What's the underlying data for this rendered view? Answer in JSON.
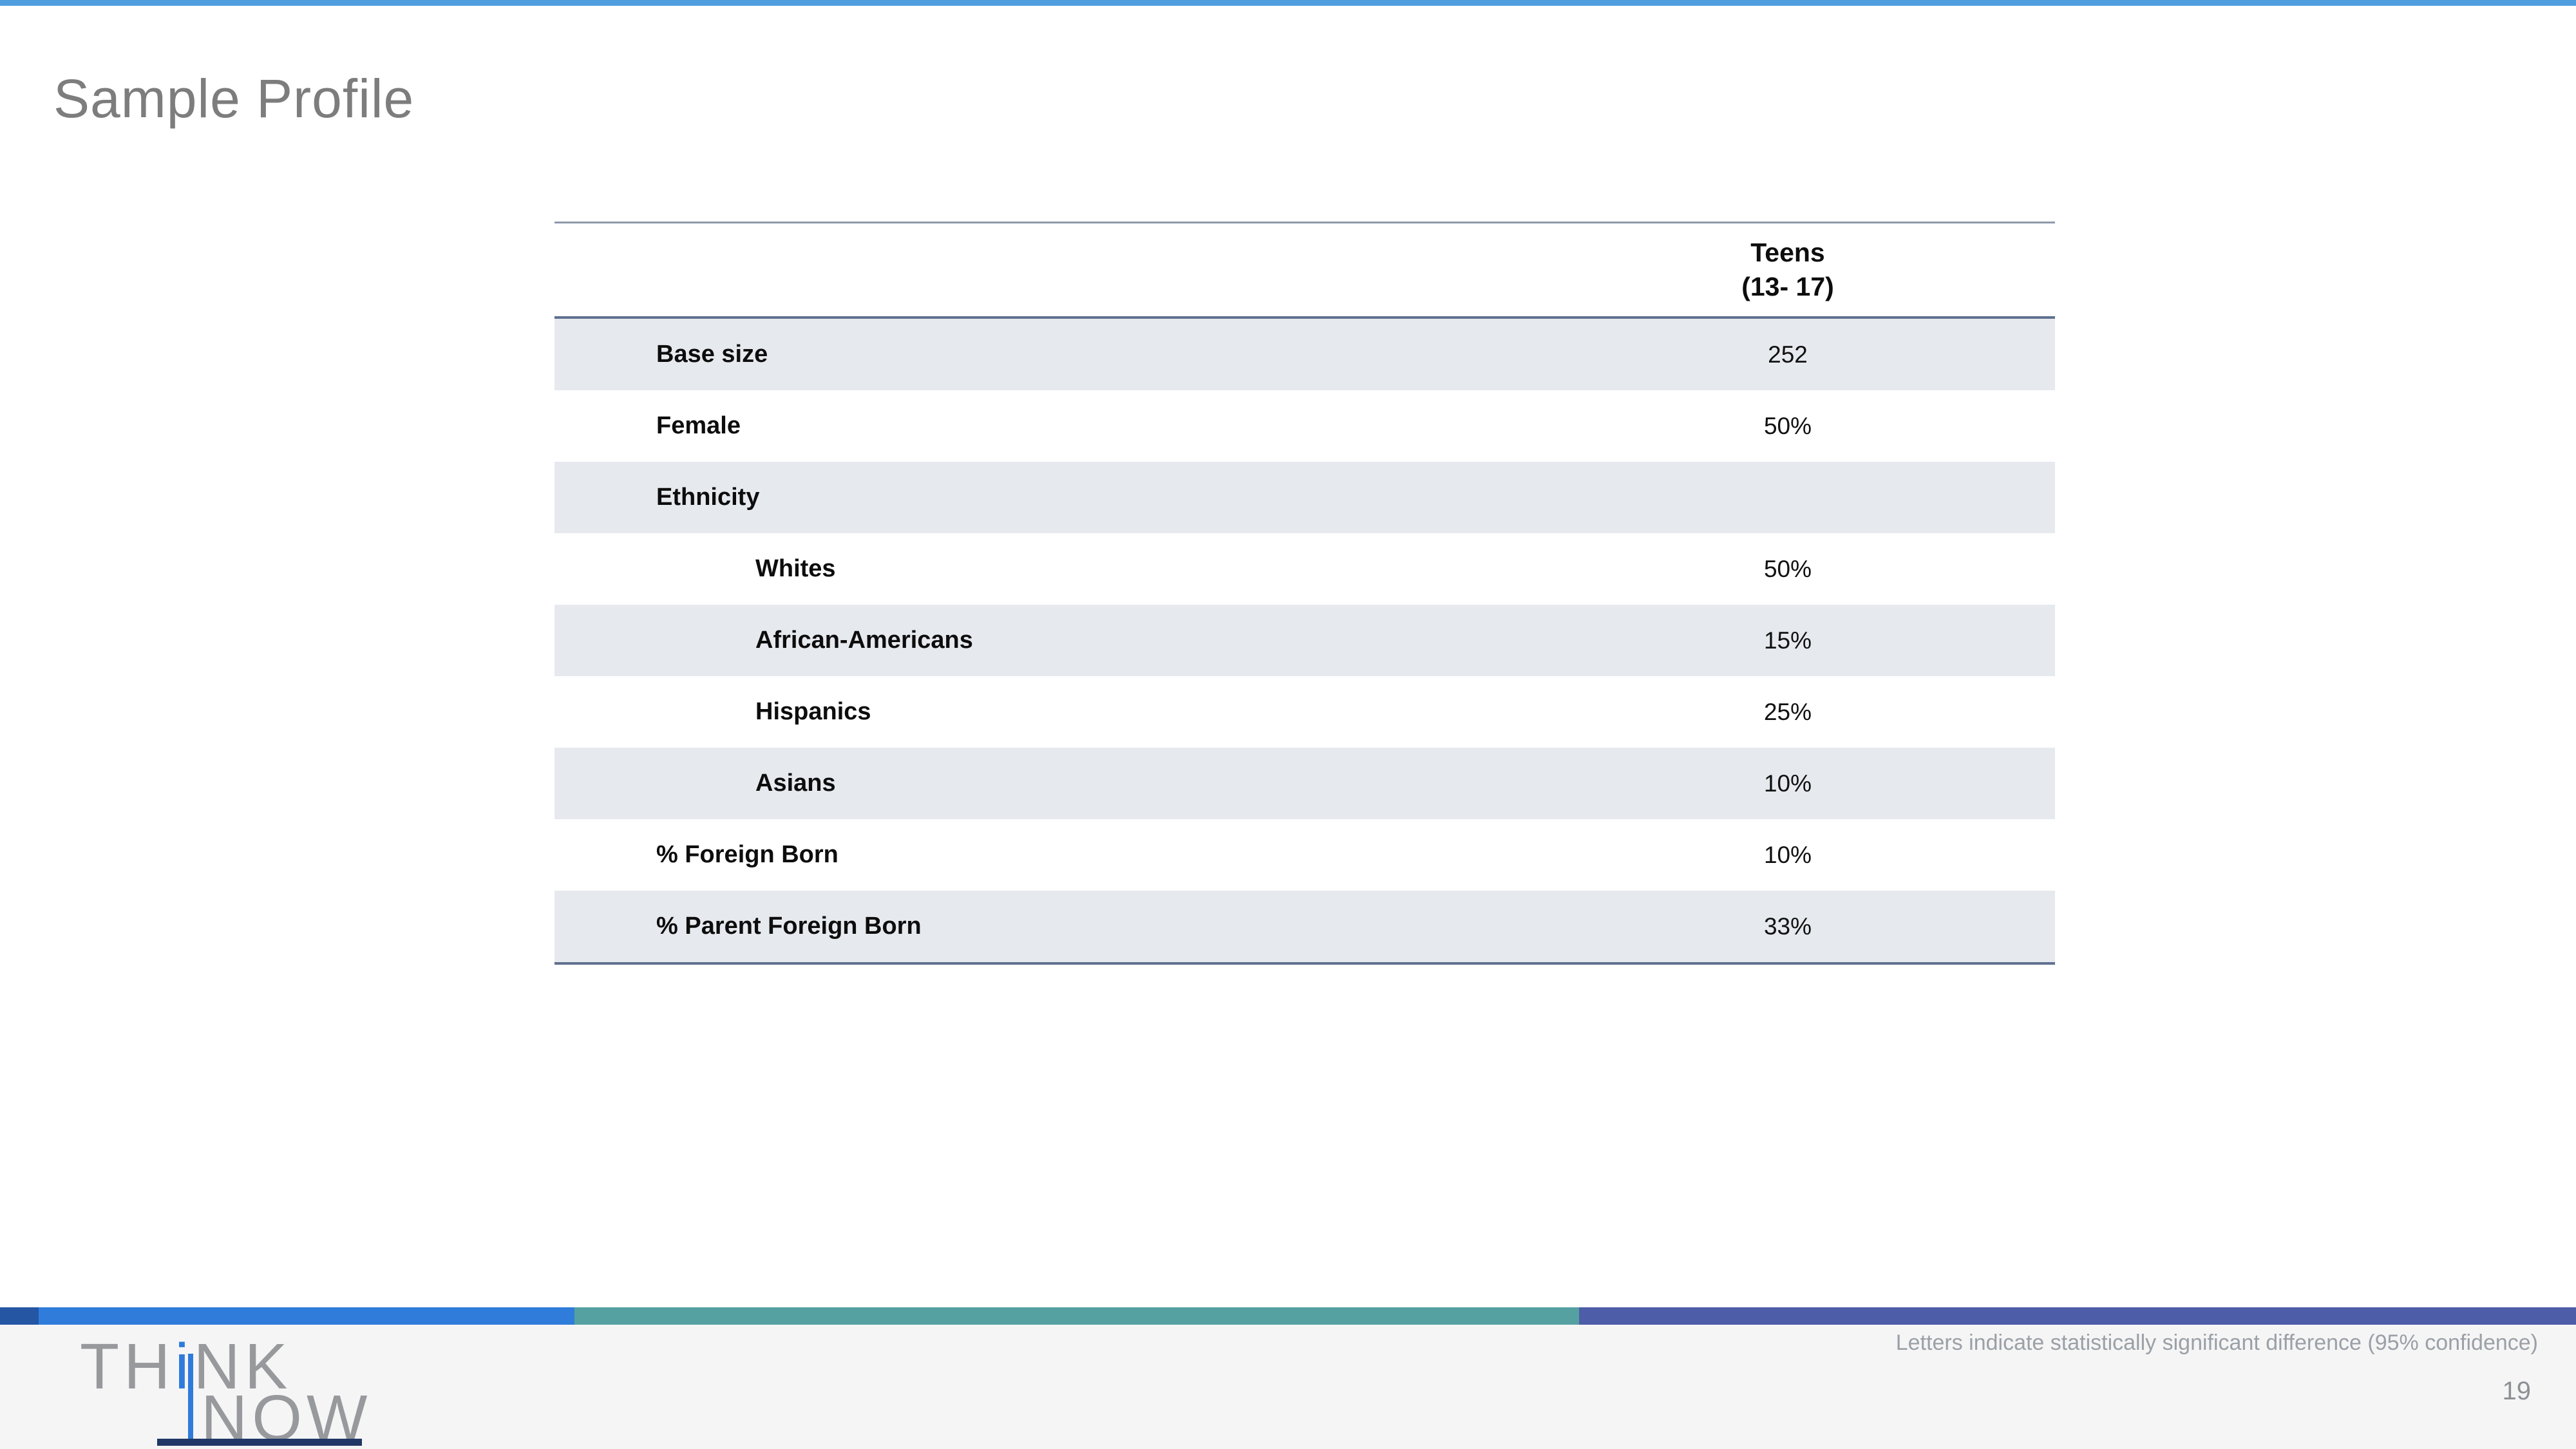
{
  "slide": {
    "title": "Sample Profile",
    "footer_note": "Letters indicate statistically significant difference (95% confidence)",
    "page_number": "19"
  },
  "logo": {
    "line1_pre": "TH",
    "line1_i": "i",
    "line1_post": "NK",
    "line2": "NOW"
  },
  "table": {
    "header_line1": "Teens",
    "header_line2": "(13- 17)",
    "rows": [
      {
        "label": "Base size",
        "value": "252",
        "indent": 1,
        "shaded": true
      },
      {
        "label": "Female",
        "value": "50%",
        "indent": 1,
        "shaded": false
      },
      {
        "label": "Ethnicity",
        "value": "",
        "indent": 1,
        "shaded": true
      },
      {
        "label": "Whites",
        "value": "50%",
        "indent": 2,
        "shaded": false
      },
      {
        "label": "African-Americans",
        "value": "15%",
        "indent": 2,
        "shaded": true
      },
      {
        "label": "Hispanics",
        "value": "25%",
        "indent": 2,
        "shaded": false
      },
      {
        "label": "Asians",
        "value": "10%",
        "indent": 2,
        "shaded": true
      },
      {
        "label": "% Foreign Born",
        "value": "10%",
        "indent": 1,
        "shaded": false
      },
      {
        "label": "% Parent Foreign Born",
        "value": "33%",
        "indent": 1,
        "shaded": true
      }
    ]
  },
  "colors": {
    "top_accent": "#4f9fe0",
    "shaded_row": "#e6e9ee",
    "table_rule": "#61708f",
    "logo_blue": "#2e7bdb",
    "logo_navy": "#203865"
  },
  "footer": {
    "stripe_segments": [
      {
        "color": "#2456a3",
        "width_pct": 1.5
      },
      {
        "color": "#2f7cdb",
        "width_pct": 20.8
      },
      {
        "color": "#55a1a1",
        "width_pct": 39.0
      },
      {
        "color": "#4d5da8",
        "width_pct": 38.7
      }
    ]
  }
}
